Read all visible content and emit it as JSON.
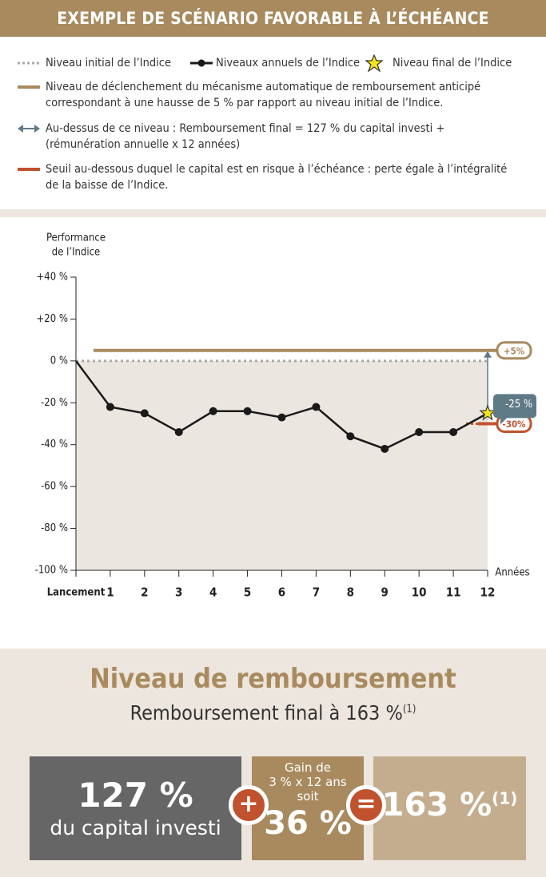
{
  "chart_data": {
    "type": "line",
    "title": "EXEMPLE DE SCÉNARIO FAVORABLE À L’ÉCHÉANCE",
    "y_axis_label": [
      "Performance",
      "de l’Indice"
    ],
    "x_axis_label": "Années",
    "categories": [
      "Lancement",
      "1",
      "2",
      "3",
      "4",
      "5",
      "6",
      "7",
      "8",
      "9",
      "10",
      "11",
      "12"
    ],
    "series": [
      {
        "name": "Niveaux annuels de l’Indice",
        "color": "#1a1a1a",
        "values": [
          0,
          -22,
          -25,
          -34,
          -24,
          -24,
          -27,
          -22,
          -36,
          -42,
          -34,
          -34,
          -25
        ],
        "value_labels": [
          null,
          null,
          null,
          null,
          null,
          null,
          null,
          null,
          null,
          null,
          null,
          null,
          "-25 %"
        ]
      }
    ],
    "final_marker": {
      "name": "Niveau final de l’Indice",
      "color": "#f5e61a"
    },
    "reference_lines": [
      {
        "legend_lines": [
          "Niveau initial de l’Indice"
        ],
        "value": 0,
        "color": "#a9a9a9",
        "style": "dotted"
      },
      {
        "legend_lines": [
          "Niveau de déclenchement du mécanisme automatique de remboursement anticipé",
          "correspondant à une hausse de 5 % par rapport au niveau initial de l’Indice."
        ],
        "value": 5,
        "label": "+5%",
        "color": "#a88a5e",
        "style": "solid"
      },
      {
        "legend_lines": [
          "Seuil au-dessous duquel le capital est en risque à l’échéance : perte égale à l’intégralité",
          "de la baisse de l’Indice."
        ],
        "value": -30,
        "label": "-30%",
        "color": "#c0522d",
        "style": "solid"
      }
    ],
    "arrow": {
      "legend_lines": [
        "Au-dessus de ce niveau : Remboursement final = 127 % du capital investi +",
        "(rémunération annuelle x 12 années)"
      ],
      "color": "#5f7a87"
    },
    "ylim": [
      -100,
      40
    ],
    "yticks": [
      {
        "value": -100,
        "label": "-100 %"
      },
      {
        "value": -80,
        "label": "-80 %"
      },
      {
        "value": -60,
        "label": "-60 %"
      },
      {
        "value": -40,
        "label": "-40 %"
      },
      {
        "value": -20,
        "label": "-20 %"
      },
      {
        "value": 0,
        "label": "0 %"
      },
      {
        "value": 20,
        "label": "+20 %"
      },
      {
        "value": 40,
        "label": "+40 %"
      }
    ]
  },
  "summary": {
    "title": "Niveau de remboursement",
    "subtitle": "Remboursement final à 163 %",
    "subtitle_note": "(1)",
    "box1": {
      "big": "127 %",
      "small": "du capital investi"
    },
    "plus": "+",
    "box2": {
      "lines": [
        "Gain de",
        "3 % x 12 ans",
        "soit"
      ],
      "big": "36 %"
    },
    "equals": "=",
    "box3": {
      "big": "163 %",
      "note": "(1)"
    }
  }
}
